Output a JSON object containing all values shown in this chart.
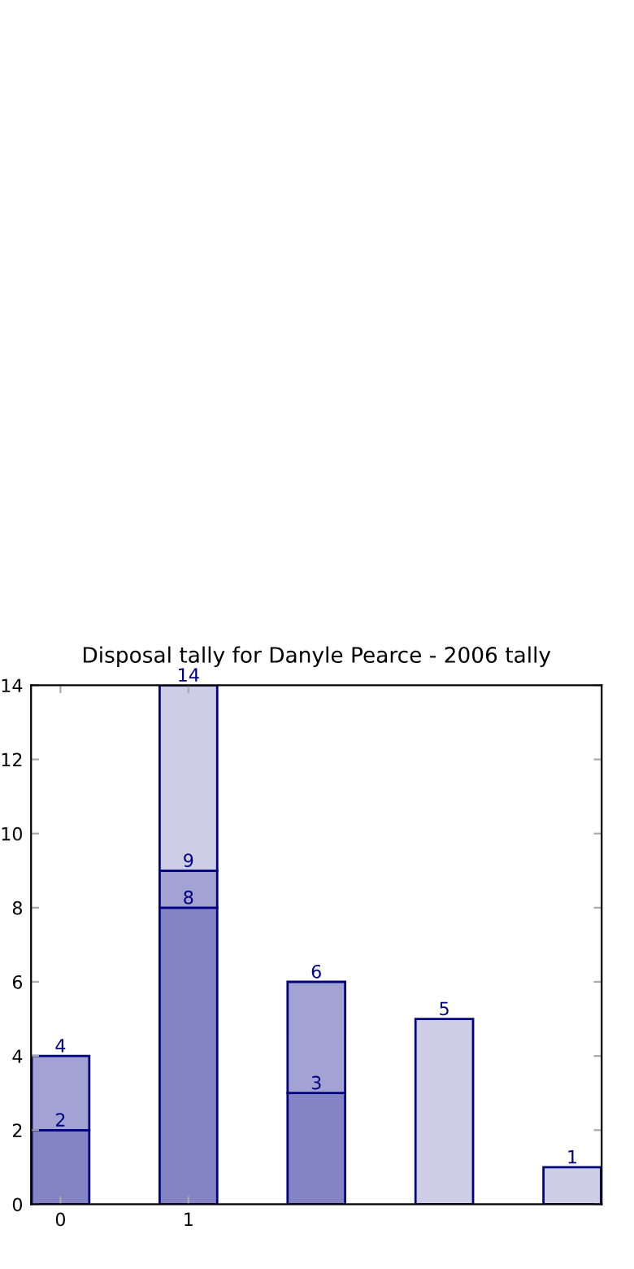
{
  "chart_data": {
    "type": "bar",
    "title": "Disposal tally for Danyle Pearce - 2006 tally",
    "categories": [
      "0",
      "1",
      null,
      null,
      null
    ],
    "stacked": true,
    "series": [
      {
        "color": "#8484c4",
        "values": [
          2,
          8,
          3,
          null,
          null
        ]
      },
      {
        "color": "#a3a3d3",
        "values": [
          2,
          1,
          3,
          null,
          null
        ]
      },
      {
        "color": "#cdcde5",
        "values": [
          null,
          5,
          null,
          5,
          1
        ]
      }
    ],
    "totals": [
      "4",
      "14",
      "6",
      "5",
      "1"
    ],
    "annotations": [
      {
        "text": "2",
        "x": "0",
        "y": 2
      },
      {
        "text": "8",
        "x": "1",
        "y": 8
      },
      {
        "text": "9",
        "x": "1",
        "y": 9
      },
      {
        "text": "3",
        "y": 3
      }
    ],
    "ylim": [
      0,
      14
    ],
    "yticks": [
      0,
      2,
      4,
      6,
      8,
      10,
      12,
      14
    ],
    "grid": false,
    "legend": false
  }
}
